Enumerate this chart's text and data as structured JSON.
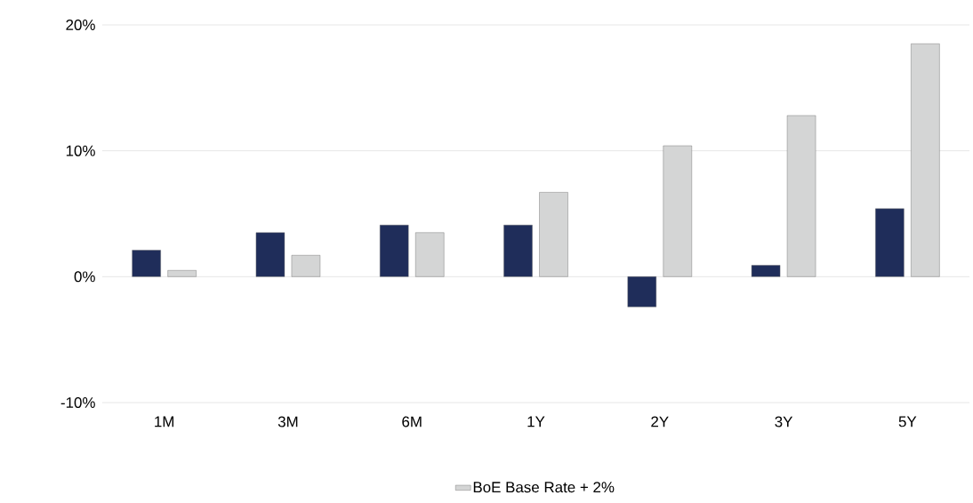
{
  "chart_data": {
    "type": "bar",
    "categories": [
      "1M",
      "3M",
      "6M",
      "1Y",
      "2Y",
      "3Y",
      "5Y"
    ],
    "series": [
      {
        "color": "#1f2d5a",
        "values": [
          2.1,
          3.5,
          4.1,
          4.1,
          -2.4,
          0.9,
          5.4
        ]
      },
      {
        "name": "BoE Base Rate + 2%",
        "color": "#d4d5d5",
        "values": [
          0.5,
          1.7,
          3.5,
          6.7,
          10.4,
          12.8,
          18.5
        ]
      }
    ],
    "ylim": [
      -10,
      20
    ],
    "yticks": [
      {
        "value": -10,
        "label": "-10%"
      },
      {
        "value": 0,
        "label": "0%"
      },
      {
        "value": 10,
        "label": "10%"
      },
      {
        "value": 20,
        "label": "20%"
      }
    ],
    "grid": "y",
    "legend": "bottom"
  }
}
